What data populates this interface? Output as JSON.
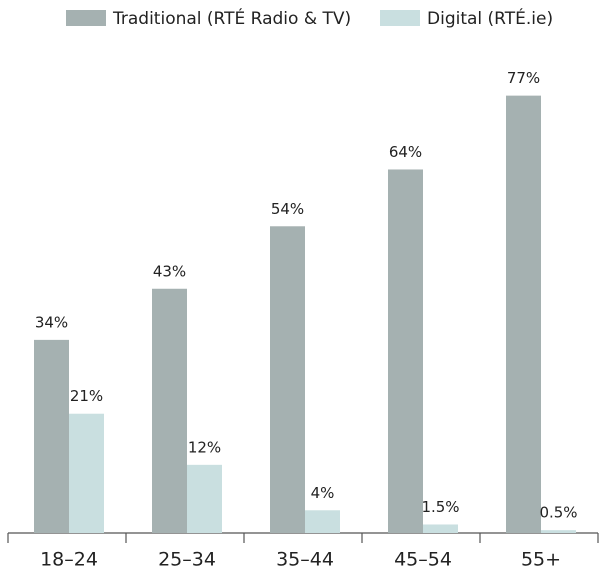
{
  "chart_data": {
    "type": "bar",
    "categories": [
      "18–24",
      "25–34",
      "35–44",
      "45–54",
      "55+"
    ],
    "series": [
      {
        "name": "Traditional (RTÉ Radio & TV)",
        "color": "#a5b1b1",
        "values": [
          34,
          43,
          54,
          64,
          77
        ],
        "value_labels": [
          "34%",
          "43%",
          "54%",
          "64%",
          "77%"
        ]
      },
      {
        "name": "Digital (RTÉ.ie)",
        "color": "#c9dfe0",
        "values": [
          21,
          12,
          4,
          1.5,
          0.5
        ],
        "value_labels": [
          "21%",
          "12%",
          "4%",
          "1.5%",
          "0.5%"
        ]
      }
    ],
    "legend": "top"
  }
}
